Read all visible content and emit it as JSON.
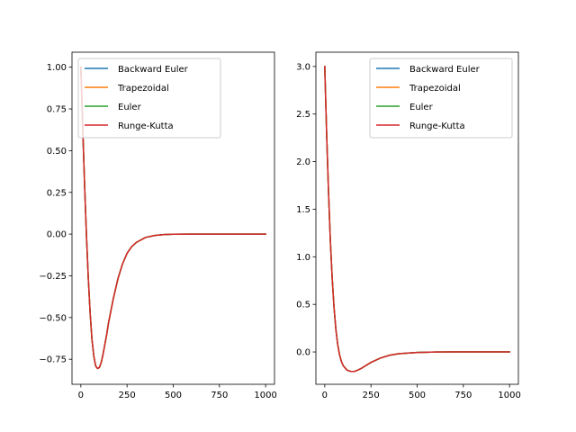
{
  "chart_data": [
    {
      "type": "line",
      "xlim": [
        -48,
        1048
      ],
      "ylim": [
        -0.9,
        1.09
      ],
      "xticks": [
        0,
        250,
        500,
        750,
        1000
      ],
      "xtick_labels": [
        "0",
        "250",
        "500",
        "750",
        "1000"
      ],
      "yticks": [
        -0.75,
        -0.5,
        -0.25,
        0.0,
        0.25,
        0.5,
        0.75,
        1.0
      ],
      "ytick_labels": [
        "−0.75",
        "−0.50",
        "−0.25",
        "0.00",
        "0.25",
        "0.50",
        "0.75",
        "1.00"
      ],
      "legend": "top-left",
      "grid": false,
      "x": [
        0,
        10,
        20,
        30,
        40,
        50,
        60,
        70,
        80,
        90,
        100,
        110,
        120,
        130,
        140,
        150,
        175,
        200,
        225,
        250,
        275,
        300,
        350,
        400,
        450,
        500,
        600,
        700,
        800,
        900,
        1000
      ],
      "series": [
        {
          "name": "Backward Euler",
          "color": "#1f77b4",
          "values": [
            1.0,
            0.64,
            0.3,
            0.0,
            -0.26,
            -0.47,
            -0.63,
            -0.73,
            -0.79,
            -0.805,
            -0.8,
            -0.77,
            -0.72,
            -0.66,
            -0.6,
            -0.53,
            -0.39,
            -0.27,
            -0.18,
            -0.115,
            -0.075,
            -0.05,
            -0.02,
            -0.008,
            -0.003,
            -0.001,
            0.0,
            0.0,
            0.0,
            0.0,
            0.0
          ]
        },
        {
          "name": "Trapezoidal",
          "color": "#ff7f0e",
          "values": [
            1.0,
            0.64,
            0.3,
            0.0,
            -0.26,
            -0.47,
            -0.63,
            -0.73,
            -0.79,
            -0.805,
            -0.8,
            -0.77,
            -0.72,
            -0.66,
            -0.6,
            -0.53,
            -0.39,
            -0.27,
            -0.18,
            -0.115,
            -0.075,
            -0.05,
            -0.02,
            -0.008,
            -0.003,
            -0.001,
            0.0,
            0.0,
            0.0,
            0.0,
            0.0
          ]
        },
        {
          "name": "Euler",
          "color": "#2ca02c",
          "values": [
            1.0,
            0.64,
            0.3,
            0.0,
            -0.26,
            -0.47,
            -0.63,
            -0.73,
            -0.79,
            -0.805,
            -0.8,
            -0.77,
            -0.72,
            -0.66,
            -0.6,
            -0.53,
            -0.39,
            -0.27,
            -0.18,
            -0.115,
            -0.075,
            -0.05,
            -0.02,
            -0.008,
            -0.003,
            -0.001,
            0.0,
            0.0,
            0.0,
            0.0,
            0.0
          ]
        },
        {
          "name": "Runge-Kutta",
          "color": "#d62728",
          "values": [
            1.0,
            0.64,
            0.3,
            0.0,
            -0.26,
            -0.47,
            -0.63,
            -0.73,
            -0.79,
            -0.805,
            -0.8,
            -0.77,
            -0.72,
            -0.66,
            -0.6,
            -0.53,
            -0.39,
            -0.27,
            -0.18,
            -0.115,
            -0.075,
            -0.05,
            -0.02,
            -0.008,
            -0.003,
            -0.001,
            0.0,
            0.0,
            0.0,
            0.0,
            0.0
          ]
        }
      ]
    },
    {
      "type": "line",
      "xlim": [
        -48,
        1048
      ],
      "ylim": [
        -0.34,
        3.15
      ],
      "xticks": [
        0,
        250,
        500,
        750,
        1000
      ],
      "xtick_labels": [
        "0",
        "250",
        "500",
        "750",
        "1000"
      ],
      "yticks": [
        0.0,
        0.5,
        1.0,
        1.5,
        2.0,
        2.5,
        3.0
      ],
      "ytick_labels": [
        "0.0",
        "0.5",
        "1.0",
        "1.5",
        "2.0",
        "2.5",
        "3.0"
      ],
      "legend": "top-right",
      "grid": false,
      "x": [
        0,
        5,
        10,
        20,
        30,
        40,
        50,
        60,
        70,
        80,
        90,
        100,
        120,
        140,
        160,
        180,
        200,
        250,
        300,
        350,
        400,
        500,
        600,
        700,
        800,
        900,
        1000
      ],
      "series": [
        {
          "name": "Backward Euler",
          "color": "#1f77b4",
          "values": [
            3.0,
            2.65,
            2.3,
            1.7,
            1.18,
            0.78,
            0.47,
            0.24,
            0.08,
            -0.03,
            -0.1,
            -0.145,
            -0.19,
            -0.205,
            -0.205,
            -0.19,
            -0.17,
            -0.11,
            -0.065,
            -0.035,
            -0.018,
            -0.005,
            -0.001,
            0.0,
            0.0,
            0.0,
            0.0
          ]
        },
        {
          "name": "Trapezoidal",
          "color": "#ff7f0e",
          "values": [
            3.0,
            2.65,
            2.3,
            1.7,
            1.18,
            0.78,
            0.47,
            0.24,
            0.08,
            -0.03,
            -0.1,
            -0.145,
            -0.19,
            -0.205,
            -0.205,
            -0.19,
            -0.17,
            -0.11,
            -0.065,
            -0.035,
            -0.018,
            -0.005,
            -0.001,
            0.0,
            0.0,
            0.0,
            0.0
          ]
        },
        {
          "name": "Euler",
          "color": "#2ca02c",
          "values": [
            3.0,
            2.65,
            2.3,
            1.7,
            1.18,
            0.78,
            0.47,
            0.24,
            0.08,
            -0.03,
            -0.1,
            -0.145,
            -0.19,
            -0.205,
            -0.205,
            -0.19,
            -0.17,
            -0.11,
            -0.065,
            -0.035,
            -0.018,
            -0.005,
            -0.001,
            0.0,
            0.0,
            0.0,
            0.0
          ]
        },
        {
          "name": "Runge-Kutta",
          "color": "#d62728",
          "values": [
            3.0,
            2.65,
            2.3,
            1.7,
            1.18,
            0.78,
            0.47,
            0.24,
            0.08,
            -0.03,
            -0.1,
            -0.145,
            -0.19,
            -0.205,
            -0.205,
            -0.19,
            -0.17,
            -0.11,
            -0.065,
            -0.035,
            -0.018,
            -0.005,
            -0.001,
            0.0,
            0.0,
            0.0,
            0.0
          ]
        }
      ]
    }
  ]
}
